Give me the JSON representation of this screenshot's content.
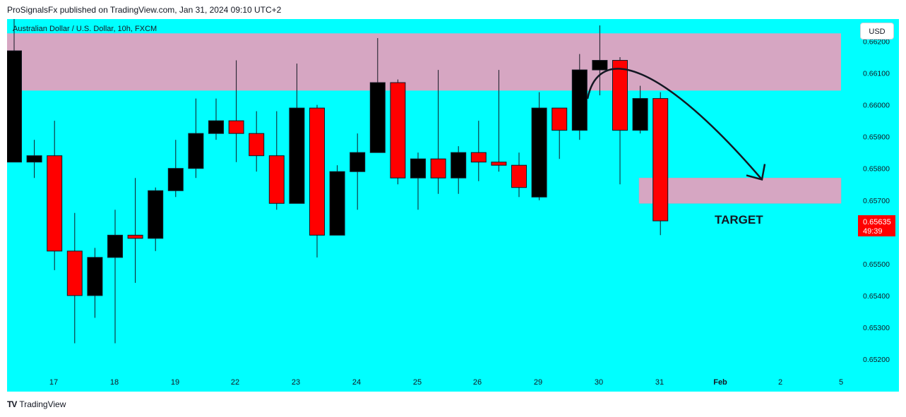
{
  "header": {
    "published": "ProSignalsFx published on TradingView.com, Jan 31, 2024 09:10 UTC+2"
  },
  "symbol": {
    "title": "Australian Dollar / U.S. Dollar, 10h, FXCM"
  },
  "currency": "USD",
  "footer": {
    "brand": "TradingView",
    "logo": "TV"
  },
  "colors": {
    "background": "#00ffff",
    "bull": "#000000",
    "bear": "#ff0000",
    "zone": "#d6a6c2",
    "price_tag": "#ff0000"
  },
  "chart_data": {
    "type": "candlestick",
    "instrument": "Australian Dollar / U.S. Dollar",
    "timeframe": "10h",
    "source": "FXCM",
    "y_ticks": [
      "0.66200",
      "0.66100",
      "0.66000",
      "0.65900",
      "0.65800",
      "0.65700",
      "0.65500",
      "0.65400",
      "0.65300",
      "0.65200"
    ],
    "y_tick_values": [
      0.662,
      0.661,
      0.66,
      0.659,
      0.658,
      0.657,
      0.655,
      0.654,
      0.653,
      0.652
    ],
    "ylim": [
      0.6516,
      0.6627
    ],
    "x_ticks": [
      "17",
      "18",
      "19",
      "22",
      "23",
      "24",
      "25",
      "26",
      "29",
      "30",
      "31",
      "Feb",
      "2",
      "5"
    ],
    "x_tick_bold": [
      false,
      false,
      false,
      false,
      false,
      false,
      false,
      false,
      false,
      false,
      false,
      true,
      false,
      false
    ],
    "candles": [
      {
        "o": 0.6582,
        "h": 0.6651,
        "l": 0.6582,
        "c": 0.6617
      },
      {
        "o": 0.6582,
        "h": 0.6589,
        "l": 0.6577,
        "c": 0.6584
      },
      {
        "o": 0.6584,
        "h": 0.6595,
        "l": 0.6548,
        "c": 0.6554
      },
      {
        "o": 0.6554,
        "h": 0.6566,
        "l": 0.6525,
        "c": 0.654
      },
      {
        "o": 0.654,
        "h": 0.6555,
        "l": 0.6533,
        "c": 0.6552
      },
      {
        "o": 0.6552,
        "h": 0.6567,
        "l": 0.6525,
        "c": 0.6559
      },
      {
        "o": 0.6559,
        "h": 0.6577,
        "l": 0.6544,
        "c": 0.6558
      },
      {
        "o": 0.6558,
        "h": 0.6574,
        "l": 0.6554,
        "c": 0.6573
      },
      {
        "o": 0.6573,
        "h": 0.6589,
        "l": 0.6571,
        "c": 0.658
      },
      {
        "o": 0.658,
        "h": 0.6602,
        "l": 0.6577,
        "c": 0.6591
      },
      {
        "o": 0.6591,
        "h": 0.6602,
        "l": 0.6589,
        "c": 0.6595
      },
      {
        "o": 0.6595,
        "h": 0.6614,
        "l": 0.6582,
        "c": 0.6591
      },
      {
        "o": 0.6591,
        "h": 0.6598,
        "l": 0.6579,
        "c": 0.6584
      },
      {
        "o": 0.6584,
        "h": 0.6598,
        "l": 0.6567,
        "c": 0.6569
      },
      {
        "o": 0.6569,
        "h": 0.6613,
        "l": 0.6569,
        "c": 0.6599
      },
      {
        "o": 0.6599,
        "h": 0.66,
        "l": 0.6552,
        "c": 0.6559
      },
      {
        "o": 0.6559,
        "h": 0.6581,
        "l": 0.6559,
        "c": 0.6579
      },
      {
        "o": 0.6579,
        "h": 0.6591,
        "l": 0.6567,
        "c": 0.6585
      },
      {
        "o": 0.6585,
        "h": 0.6621,
        "l": 0.6585,
        "c": 0.6607
      },
      {
        "o": 0.6607,
        "h": 0.6608,
        "l": 0.6575,
        "c": 0.6577
      },
      {
        "o": 0.6577,
        "h": 0.6585,
        "l": 0.6567,
        "c": 0.6583
      },
      {
        "o": 0.6583,
        "h": 0.6611,
        "l": 0.6572,
        "c": 0.6577
      },
      {
        "o": 0.6577,
        "h": 0.6587,
        "l": 0.6572,
        "c": 0.6585
      },
      {
        "o": 0.6585,
        "h": 0.6595,
        "l": 0.6576,
        "c": 0.6582
      },
      {
        "o": 0.6582,
        "h": 0.6611,
        "l": 0.6579,
        "c": 0.6581
      },
      {
        "o": 0.6581,
        "h": 0.6585,
        "l": 0.6571,
        "c": 0.6574
      },
      {
        "o": 0.6571,
        "h": 0.6604,
        "l": 0.657,
        "c": 0.6599
      },
      {
        "o": 0.6599,
        "h": 0.6599,
        "l": 0.6583,
        "c": 0.6592
      },
      {
        "o": 0.6592,
        "h": 0.6616,
        "l": 0.6589,
        "c": 0.6611
      },
      {
        "o": 0.6611,
        "h": 0.6625,
        "l": 0.6603,
        "c": 0.6614
      },
      {
        "o": 0.6614,
        "h": 0.6615,
        "l": 0.6575,
        "c": 0.6592
      },
      {
        "o": 0.6592,
        "h": 0.6606,
        "l": 0.6591,
        "c": 0.6602
      },
      {
        "o": 0.6602,
        "h": 0.6604,
        "l": 0.6559,
        "c": 0.65635
      }
    ],
    "resistance_zone": {
      "low": 0.66045,
      "high": 0.66225
    },
    "target_zone": {
      "low": 0.6569,
      "high": 0.6577
    },
    "annotation": "TARGET",
    "last_price": "0.65635",
    "countdown": "49:39",
    "grid": false,
    "legend": "none"
  }
}
